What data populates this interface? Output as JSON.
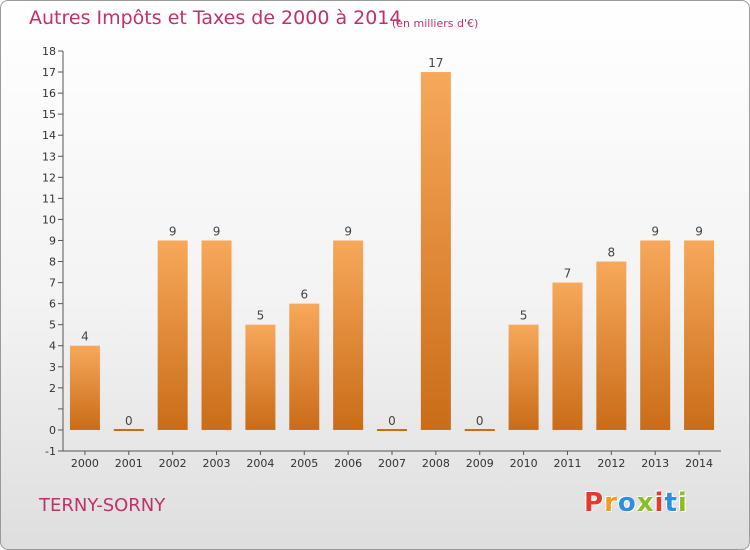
{
  "header": {
    "title": "Autres Impôts et Taxes de 2000 à 2014",
    "unit": "(en milliers d'€)"
  },
  "footer": {
    "commune": "TERNY-SORNY",
    "logo_text": "Proxiti"
  },
  "colors": {
    "title": "#c0306a",
    "bar_top": "#f7a85a",
    "bar_bottom": "#c96c18",
    "logo_letters": [
      "#e23b2e",
      "#f39a1f",
      "#2f8fd8",
      "#8cbf26",
      "#e23b2e",
      "#2f8fd8",
      "#8cbf26"
    ]
  },
  "chart_data": {
    "type": "bar",
    "categories": [
      "2000",
      "2001",
      "2002",
      "2003",
      "2004",
      "2005",
      "2006",
      "2007",
      "2008",
      "2009",
      "2010",
      "2011",
      "2012",
      "2013",
      "2014"
    ],
    "values": [
      4,
      0,
      9,
      9,
      5,
      6,
      9,
      0,
      17,
      0,
      5,
      7,
      8,
      9,
      9
    ],
    "ylim": [
      -1,
      18
    ],
    "yticks": [
      -1,
      0,
      1,
      2,
      3,
      4,
      5,
      6,
      7,
      8,
      9,
      10,
      11,
      12,
      13,
      14,
      15,
      16,
      17,
      18
    ],
    "ytick_labels": [
      "-1",
      "0",
      "",
      "2",
      "3",
      "4",
      "5",
      "6",
      "7",
      "8",
      "9",
      "10",
      "11",
      "12",
      "13",
      "14",
      "15",
      "16",
      "17",
      "18"
    ],
    "grid": false,
    "data_labels": true
  }
}
